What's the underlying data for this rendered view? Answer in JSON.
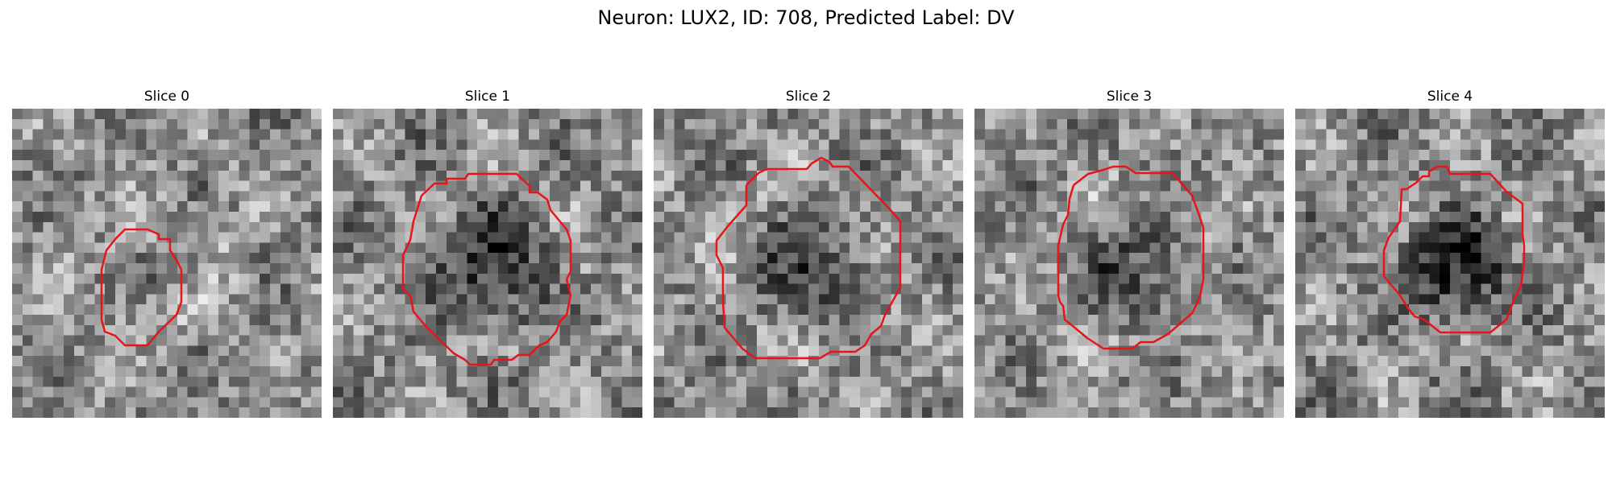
{
  "figure": {
    "title": "Neuron: LUX2, ID: 708, Predicted Label: DV"
  },
  "colors": {
    "contour": "#e8141a",
    "background": "#ffffff"
  },
  "grid_size": 30,
  "panels": [
    {
      "title": "Slice 0",
      "seed": 11,
      "darkCenter": 0.12,
      "blob": 0.18
    },
    {
      "title": "Slice 1",
      "seed": 23,
      "darkCenter": 0.32,
      "blob": 0.3
    },
    {
      "title": "Slice 2",
      "seed": 37,
      "darkCenter": 0.22,
      "blob": 0.32
    },
    {
      "title": "Slice 3",
      "seed": 51,
      "darkCenter": 0.25,
      "blob": 0.27
    },
    {
      "title": "Slice 4",
      "seed": 67,
      "darkCenter": 0.4,
      "blob": 0.26
    }
  ]
}
